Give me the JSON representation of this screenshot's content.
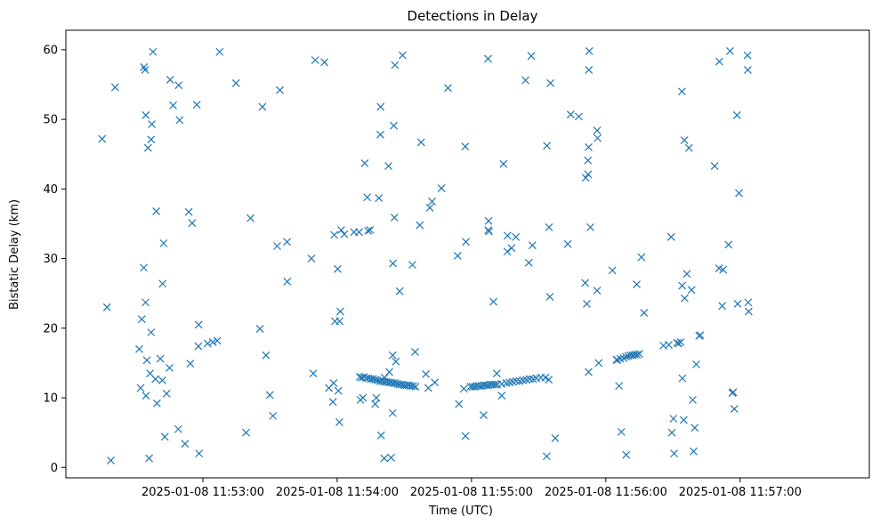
{
  "chart_data": {
    "type": "scatter",
    "title": "Detections in Delay",
    "xlabel": "Time (UTC)",
    "ylabel": "Bistatic Delay (km)",
    "marker": "x",
    "color": "#1f77b4",
    "grid": false,
    "x_unit": "seconds after 2025-01-08 11:52:00",
    "xlim": [
      -31.2,
      327.7
    ],
    "ylim": [
      -1.5,
      62.8
    ],
    "x_ticks": [
      {
        "value": 30,
        "label": "2025-01-08 11:53:00"
      },
      {
        "value": 90,
        "label": "2025-01-08 11:54:00"
      },
      {
        "value": 150,
        "label": "2025-01-08 11:55:00"
      },
      {
        "value": 210,
        "label": "2025-01-08 11:56:00"
      },
      {
        "value": 270,
        "label": "2025-01-08 11:57:00"
      }
    ],
    "y_ticks": [
      {
        "value": 0,
        "label": "0"
      },
      {
        "value": 10,
        "label": "10"
      },
      {
        "value": 20,
        "label": "20"
      },
      {
        "value": 30,
        "label": "30"
      },
      {
        "value": 40,
        "label": "40"
      },
      {
        "value": 50,
        "label": "50"
      },
      {
        "value": 60,
        "label": "60"
      }
    ],
    "points": [
      [
        -15.0,
        47.2
      ],
      [
        -12.8,
        23.0
      ],
      [
        -11.1,
        1.0
      ],
      [
        -9.2,
        54.6
      ],
      [
        3.7,
        57.5
      ],
      [
        4.2,
        57.1
      ],
      [
        4.5,
        50.6
      ],
      [
        5.0,
        15.4
      ],
      [
        5.5,
        45.9
      ],
      [
        6.9,
        47.1
      ],
      [
        7.2,
        49.3
      ],
      [
        7.7,
        59.7
      ],
      [
        6.0,
        1.3
      ],
      [
        9.2,
        36.8
      ],
      [
        12.5,
        32.2
      ],
      [
        15.4,
        55.7
      ],
      [
        16.7,
        52.0
      ],
      [
        19.2,
        54.9
      ],
      [
        19.6,
        49.9
      ],
      [
        1.6,
        17.0
      ],
      [
        2.2,
        11.4
      ],
      [
        2.7,
        21.3
      ],
      [
        3.6,
        28.7
      ],
      [
        4.4,
        23.7
      ],
      [
        4.6,
        10.3
      ],
      [
        6.4,
        13.5
      ],
      [
        6.9,
        19.4
      ],
      [
        8.8,
        12.7
      ],
      [
        9.5,
        9.2
      ],
      [
        11.0,
        15.6
      ],
      [
        11.9,
        12.5
      ],
      [
        12.0,
        26.4
      ],
      [
        13.0,
        4.4
      ],
      [
        13.8,
        10.6
      ],
      [
        15.1,
        14.3
      ],
      [
        19.0,
        5.5
      ],
      [
        22.0,
        3.4
      ],
      [
        24.4,
        14.9
      ],
      [
        23.7,
        36.7
      ],
      [
        25.2,
        35.1
      ],
      [
        27.3,
        52.1
      ],
      [
        28.1,
        20.5
      ],
      [
        28.0,
        17.4
      ],
      [
        28.3,
        2.0
      ],
      [
        32.1,
        17.8
      ],
      [
        34.5,
        18.0
      ],
      [
        36.4,
        18.2
      ],
      [
        37.5,
        59.7
      ],
      [
        44.8,
        55.2
      ],
      [
        49.3,
        5.0
      ],
      [
        51.3,
        35.8
      ],
      [
        55.5,
        19.9
      ],
      [
        56.6,
        51.8
      ],
      [
        58.2,
        16.1
      ],
      [
        59.9,
        10.4
      ],
      [
        61.3,
        7.4
      ],
      [
        63.2,
        31.8
      ],
      [
        64.4,
        54.2
      ],
      [
        67.6,
        32.4
      ],
      [
        67.7,
        26.7
      ],
      [
        78.5,
        30.0
      ],
      [
        79.3,
        13.5
      ],
      [
        80.2,
        58.5
      ],
      [
        84.3,
        58.2
      ],
      [
        86.3,
        11.4
      ],
      [
        88.1,
        9.4
      ],
      [
        88.4,
        12.1
      ],
      [
        88.7,
        33.4
      ],
      [
        89.0,
        21.0
      ],
      [
        90.2,
        28.5
      ],
      [
        90.5,
        11.0
      ],
      [
        91.1,
        21.0
      ],
      [
        91.4,
        22.4
      ],
      [
        91.0,
        6.5
      ],
      [
        91.8,
        34.1
      ],
      [
        93.2,
        33.5
      ],
      [
        97.5,
        33.8
      ],
      [
        99.8,
        33.8
      ],
      [
        100.4,
        9.7
      ],
      [
        101.5,
        10.0
      ],
      [
        102.3,
        43.7
      ],
      [
        103.4,
        38.8
      ],
      [
        103.8,
        34.0
      ],
      [
        104.7,
        34.1
      ],
      [
        107.0,
        9.1
      ],
      [
        107.5,
        10.0
      ],
      [
        108.6,
        38.7
      ],
      [
        109.3,
        47.8
      ],
      [
        109.4,
        51.8
      ],
      [
        109.6,
        4.6
      ],
      [
        111.2,
        12.9
      ],
      [
        111.0,
        1.3
      ],
      [
        113.3,
        13.7
      ],
      [
        112.9,
        43.3
      ],
      [
        114.1,
        1.4
      ],
      [
        114.8,
        16.1
      ],
      [
        114.8,
        7.8
      ],
      [
        114.9,
        29.3
      ],
      [
        115.3,
        49.1
      ],
      [
        115.6,
        35.9
      ],
      [
        115.8,
        57.8
      ],
      [
        116.2,
        15.2
      ],
      [
        117.9,
        25.3
      ],
      [
        119.2,
        59.2
      ],
      [
        123.6,
        29.1
      ],
      [
        124.8,
        16.6
      ],
      [
        126.9,
        34.8
      ],
      [
        127.5,
        46.7
      ],
      [
        129.6,
        13.4
      ],
      [
        130.7,
        11.4
      ],
      [
        131.4,
        37.3
      ],
      [
        132.4,
        38.2
      ],
      [
        133.6,
        12.2
      ],
      [
        136.6,
        40.1
      ],
      [
        139.5,
        54.5
      ],
      [
        143.8,
        30.4
      ],
      [
        144.4,
        9.1
      ],
      [
        146.6,
        11.3
      ],
      [
        147.3,
        4.5
      ],
      [
        147.2,
        46.1
      ],
      [
        147.5,
        32.4
      ],
      [
        155.4,
        7.5
      ],
      [
        157.4,
        58.7
      ],
      [
        157.6,
        35.4
      ],
      [
        157.5,
        34.1
      ],
      [
        157.8,
        33.9
      ],
      [
        159.8,
        23.8
      ],
      [
        161.3,
        13.5
      ],
      [
        163.5,
        10.3
      ],
      [
        164.3,
        43.6
      ],
      [
        166.0,
        31.0
      ],
      [
        166.1,
        33.3
      ],
      [
        167.9,
        31.5
      ],
      [
        169.8,
        33.1
      ],
      [
        174.1,
        55.6
      ],
      [
        175.6,
        29.4
      ],
      [
        176.7,
        59.1
      ],
      [
        177.2,
        31.9
      ],
      [
        183.7,
        46.2
      ],
      [
        183.6,
        1.6
      ],
      [
        184.6,
        34.5
      ],
      [
        185.0,
        24.5
      ],
      [
        185.3,
        55.2
      ],
      [
        187.4,
        4.2
      ],
      [
        193.0,
        32.1
      ],
      [
        194.3,
        50.7
      ],
      [
        197.9,
        50.4
      ],
      [
        200.8,
        26.5
      ],
      [
        201.0,
        41.6
      ],
      [
        201.5,
        23.5
      ],
      [
        202.1,
        42.1
      ],
      [
        202.3,
        13.7
      ],
      [
        202.0,
        44.1
      ],
      [
        202.3,
        46.0
      ],
      [
        202.4,
        57.1
      ],
      [
        202.6,
        59.8
      ],
      [
        203.1,
        34.5
      ],
      [
        206.1,
        48.4
      ],
      [
        206.3,
        47.3
      ],
      [
        206.1,
        25.4
      ],
      [
        206.8,
        15.0
      ],
      [
        212.9,
        28.3
      ],
      [
        214.9,
        15.5
      ],
      [
        215.9,
        11.7
      ],
      [
        216.9,
        5.1
      ],
      [
        219.1,
        1.8
      ],
      [
        223.8,
        26.3
      ],
      [
        225.9,
        30.2
      ],
      [
        227.1,
        22.2
      ],
      [
        235.7,
        17.5
      ],
      [
        238.1,
        17.6
      ],
      [
        239.2,
        33.1
      ],
      [
        239.5,
        5.0
      ],
      [
        240.2,
        7.0
      ],
      [
        240.5,
        2.0
      ],
      [
        241.8,
        17.9
      ],
      [
        242.5,
        17.8
      ],
      [
        243.4,
        18.0
      ],
      [
        244.0,
        54.0
      ],
      [
        244.2,
        12.8
      ],
      [
        244.1,
        26.1
      ],
      [
        244.8,
        6.8
      ],
      [
        245.2,
        24.3
      ],
      [
        245.1,
        47.0
      ],
      [
        246.2,
        27.8
      ],
      [
        247.1,
        45.9
      ],
      [
        248.3,
        25.5
      ],
      [
        248.8,
        9.7
      ],
      [
        249.2,
        2.3
      ],
      [
        249.7,
        5.7
      ],
      [
        250.4,
        14.8
      ],
      [
        251.7,
        18.9
      ],
      [
        252.2,
        19.0
      ],
      [
        258.6,
        43.3
      ],
      [
        260.7,
        58.3
      ],
      [
        260.6,
        28.6
      ],
      [
        262.0,
        23.2
      ],
      [
        262.4,
        28.4
      ],
      [
        264.8,
        32.0
      ],
      [
        265.5,
        59.8
      ],
      [
        266.5,
        10.7
      ],
      [
        266.9,
        10.8
      ],
      [
        267.4,
        8.4
      ],
      [
        268.6,
        50.6
      ],
      [
        268.9,
        23.5
      ],
      [
        269.5,
        39.4
      ],
      [
        273.3,
        59.2
      ],
      [
        273.4,
        57.1
      ],
      [
        273.6,
        23.7
      ],
      [
        273.8,
        22.4
      ],
      [
        100.1,
        13.0
      ],
      [
        101.0,
        12.9
      ],
      [
        102.0,
        13.0
      ],
      [
        103.0,
        12.8
      ],
      [
        104.0,
        12.8
      ],
      [
        105.0,
        12.7
      ],
      [
        106.0,
        12.7
      ],
      [
        107.0,
        12.6
      ],
      [
        108.0,
        12.5
      ],
      [
        109.0,
        12.4
      ],
      [
        110.0,
        12.4
      ],
      [
        111.0,
        12.3
      ],
      [
        112.0,
        12.3
      ],
      [
        113.0,
        12.2
      ],
      [
        114.0,
        12.2
      ],
      [
        115.0,
        12.1
      ],
      [
        116.0,
        12.1
      ],
      [
        117.0,
        12.0
      ],
      [
        118.0,
        11.9
      ],
      [
        119.0,
        11.9
      ],
      [
        120.0,
        11.8
      ],
      [
        121.0,
        11.8
      ],
      [
        122.0,
        11.8
      ],
      [
        123.0,
        11.7
      ],
      [
        124.0,
        11.7
      ],
      [
        125.0,
        11.6
      ],
      [
        149.5,
        11.6
      ],
      [
        150.5,
        11.6
      ],
      [
        151.5,
        11.6
      ],
      [
        152.5,
        11.7
      ],
      [
        153.5,
        11.7
      ],
      [
        154.5,
        11.7
      ],
      [
        155.5,
        11.8
      ],
      [
        156.5,
        11.8
      ],
      [
        157.5,
        11.8
      ],
      [
        158.5,
        11.9
      ],
      [
        159.5,
        11.9
      ],
      [
        160.5,
        11.9
      ],
      [
        161.5,
        11.9
      ],
      [
        163.5,
        12.0
      ],
      [
        165.5,
        12.1
      ],
      [
        167.0,
        12.2
      ],
      [
        168.5,
        12.3
      ],
      [
        170.0,
        12.4
      ],
      [
        171.5,
        12.4
      ],
      [
        173.0,
        12.5
      ],
      [
        174.5,
        12.6
      ],
      [
        176.0,
        12.7
      ],
      [
        177.5,
        12.7
      ],
      [
        179.0,
        12.8
      ],
      [
        181.0,
        12.9
      ],
      [
        183.0,
        12.9
      ],
      [
        184.5,
        12.6
      ],
      [
        215.0,
        15.4
      ],
      [
        216.5,
        15.6
      ],
      [
        218.0,
        15.7
      ],
      [
        219.0,
        15.9
      ],
      [
        220.0,
        16.0
      ],
      [
        221.0,
        16.1
      ],
      [
        222.0,
        16.1
      ],
      [
        223.0,
        16.2
      ],
      [
        224.0,
        16.2
      ],
      [
        225.0,
        16.3
      ]
    ]
  }
}
